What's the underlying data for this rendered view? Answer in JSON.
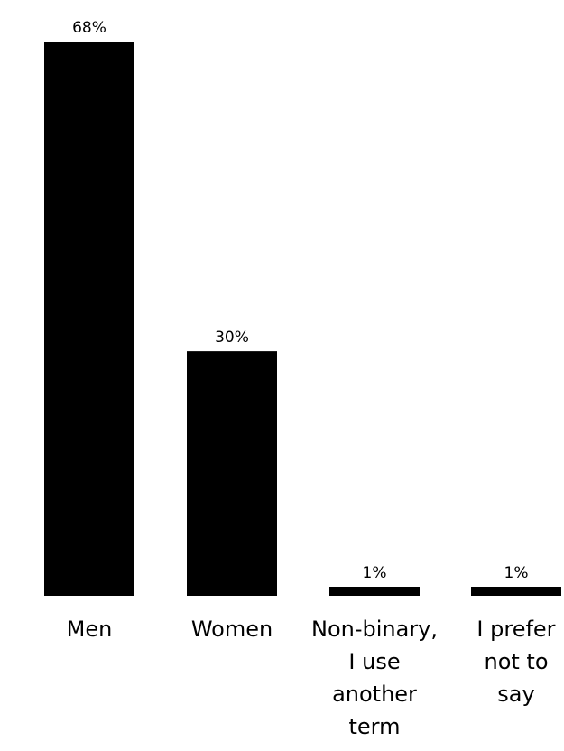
{
  "chart_data": {
    "type": "bar",
    "categories": [
      [
        "Men"
      ],
      [
        "Women"
      ],
      [
        "Non-binary,",
        "I use",
        "another",
        "term"
      ],
      [
        "I prefer",
        "not to",
        "say"
      ]
    ],
    "values": [
      68,
      30,
      1,
      1
    ],
    "data_labels": [
      "68%",
      "30%",
      "1%",
      "1%"
    ],
    "ylim": [
      0,
      68
    ],
    "grid": false,
    "legend": "none",
    "bar_color": "#000000"
  }
}
